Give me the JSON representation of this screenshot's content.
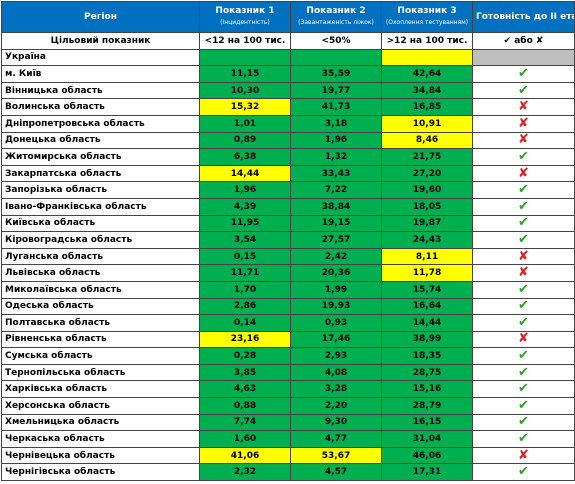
{
  "header": {
    "region": "Регіон",
    "columns": [
      {
        "title": "Показник 1",
        "subtitle": "(інцидентність)"
      },
      {
        "title": "Показник 2",
        "subtitle": "(Завантаженість ліжок)"
      },
      {
        "title": "Показник 3",
        "subtitle": "(Охоплення тестуванням)"
      }
    ],
    "ready": "Готовність до ІІ етапу"
  },
  "target": {
    "label": "Цільовий показник",
    "values": [
      "<12 на 100 тис.",
      "<50%",
      ">12 на 100 тис."
    ],
    "ready": "✔ або ✘"
  },
  "rows": [
    {
      "region": "Україна",
      "colors": [
        "#00b050",
        "#00b050",
        "#ffff00"
      ],
      "ready_bg": "#bfbfbf"
    },
    {
      "region": "м. Київ",
      "values": [
        "11,15",
        "35,59",
        "42,64"
      ],
      "colors": [
        "#00b050",
        "#00b050",
        "#00b050"
      ],
      "ready": "✔",
      "ready_color": "#2ea02e"
    },
    {
      "region": "Вінницька область",
      "values": [
        "10,30",
        "19,77",
        "34,84"
      ],
      "colors": [
        "#00b050",
        "#00b050",
        "#00b050"
      ],
      "ready": "✔",
      "ready_color": "#2ea02e"
    },
    {
      "region": "Волинська область",
      "values": [
        "15,32",
        "41,73",
        "16,85"
      ],
      "colors": [
        "#ffff00",
        "#00b050",
        "#00b050"
      ],
      "ready": "✘",
      "ready_color": "#e02020"
    },
    {
      "region": "Дніпропетровська область",
      "values": [
        "1,01",
        "3,18",
        "10,91"
      ],
      "colors": [
        "#00b050",
        "#00b050",
        "#ffff00"
      ],
      "ready": "✘",
      "ready_color": "#e02020"
    },
    {
      "region": "Донецька область",
      "values": [
        "0,89",
        "1,96",
        "8,46"
      ],
      "colors": [
        "#00b050",
        "#00b050",
        "#ffff00"
      ],
      "ready": "✘",
      "ready_color": "#e02020"
    },
    {
      "region": "Житомирська область",
      "values": [
        "6,38",
        "1,32",
        "21,75"
      ],
      "colors": [
        "#00b050",
        "#00b050",
        "#00b050"
      ],
      "ready": "✔",
      "ready_color": "#2ea02e"
    },
    {
      "region": "Закарпатська область",
      "values": [
        "14,44",
        "33,43",
        "27,20"
      ],
      "colors": [
        "#ffff00",
        "#00b050",
        "#00b050"
      ],
      "ready": "✘",
      "ready_color": "#e02020"
    },
    {
      "region": "Запорізька область",
      "values": [
        "1,96",
        "7,22",
        "19,60"
      ],
      "colors": [
        "#00b050",
        "#00b050",
        "#00b050"
      ],
      "ready": "✔",
      "ready_color": "#2ea02e"
    },
    {
      "region": "Івано-Франківська область",
      "values": [
        "4,39",
        "38,84",
        "18,05"
      ],
      "colors": [
        "#00b050",
        "#00b050",
        "#00b050"
      ],
      "ready": "✔",
      "ready_color": "#2ea02e"
    },
    {
      "region": "Київська область",
      "values": [
        "11,95",
        "19,15",
        "19,87"
      ],
      "colors": [
        "#00b050",
        "#00b050",
        "#00b050"
      ],
      "ready": "✔",
      "ready_color": "#2ea02e"
    },
    {
      "region": "Кіровоградська область",
      "values": [
        "3,54",
        "27,57",
        "24,43"
      ],
      "colors": [
        "#00b050",
        "#00b050",
        "#00b050"
      ],
      "ready": "✔",
      "ready_color": "#2ea02e"
    },
    {
      "region": "Луганська область",
      "values": [
        "0,15",
        "2,42",
        "8,11"
      ],
      "colors": [
        "#00b050",
        "#00b050",
        "#ffff00"
      ],
      "ready": "✘",
      "ready_color": "#e02020"
    },
    {
      "region": "Львівська область",
      "values": [
        "11,71",
        "20,36",
        "11,78"
      ],
      "colors": [
        "#00b050",
        "#00b050",
        "#ffff00"
      ],
      "ready": "✘",
      "ready_color": "#e02020"
    },
    {
      "region": "Миколаївська область",
      "values": [
        "1,70",
        "1,99",
        "15,74"
      ],
      "colors": [
        "#00b050",
        "#00b050",
        "#00b050"
      ],
      "ready": "✔",
      "ready_color": "#2ea02e"
    },
    {
      "region": "Одеська область",
      "values": [
        "2,86",
        "19,93",
        "16,64"
      ],
      "colors": [
        "#00b050",
        "#00b050",
        "#00b050"
      ],
      "ready": "✔",
      "ready_color": "#2ea02e"
    },
    {
      "region": "Полтавська область",
      "values": [
        "0,14",
        "0,93",
        "14,44"
      ],
      "colors": [
        "#00b050",
        "#00b050",
        "#00b050"
      ],
      "ready": "✔",
      "ready_color": "#2ea02e"
    },
    {
      "region": "Рівненська область",
      "values": [
        "23,16",
        "17,46",
        "38,99"
      ],
      "colors": [
        "#ffff00",
        "#00b050",
        "#00b050"
      ],
      "ready": "✘",
      "ready_color": "#e02020"
    },
    {
      "region": "Сумська область",
      "values": [
        "0,28",
        "2,93",
        "18,35"
      ],
      "colors": [
        "#00b050",
        "#00b050",
        "#00b050"
      ],
      "ready": "✔",
      "ready_color": "#2ea02e"
    },
    {
      "region": "Тернопільська область",
      "values": [
        "3,85",
        "4,08",
        "28,75"
      ],
      "colors": [
        "#00b050",
        "#00b050",
        "#00b050"
      ],
      "ready": "✔",
      "ready_color": "#2ea02e"
    },
    {
      "region": "Харківська область",
      "values": [
        "4,63",
        "3,28",
        "15,16"
      ],
      "colors": [
        "#00b050",
        "#00b050",
        "#00b050"
      ],
      "ready": "✔",
      "ready_color": "#2ea02e"
    },
    {
      "region": "Херсонська область",
      "values": [
        "0,88",
        "2,20",
        "28,79"
      ],
      "colors": [
        "#00b050",
        "#00b050",
        "#00b050"
      ],
      "ready": "✔",
      "ready_color": "#2ea02e"
    },
    {
      "region": "Хмельницька область",
      "values": [
        "7,74",
        "9,30",
        "16,15"
      ],
      "colors": [
        "#00b050",
        "#00b050",
        "#00b050"
      ],
      "ready": "✔",
      "ready_color": "#2ea02e"
    },
    {
      "region": "Черкаська область",
      "values": [
        "1,60",
        "4,77",
        "31,04"
      ],
      "colors": [
        "#00b050",
        "#00b050",
        "#00b050"
      ],
      "ready": "✔",
      "ready_color": "#2ea02e"
    },
    {
      "region": "Чернівецька область",
      "values": [
        "41,06",
        "53,67",
        "46,06"
      ],
      "colors": [
        "#ffff00",
        "#ffff00",
        "#00b050"
      ],
      "ready": "✘",
      "ready_color": "#e02020"
    },
    {
      "region": "Чернігівська область",
      "values": [
        "2,32",
        "4,57",
        "17,31"
      ],
      "colors": [
        "#00b050",
        "#00b050",
        "#00b050"
      ],
      "ready": "✔",
      "ready_color": "#2ea02e"
    }
  ]
}
